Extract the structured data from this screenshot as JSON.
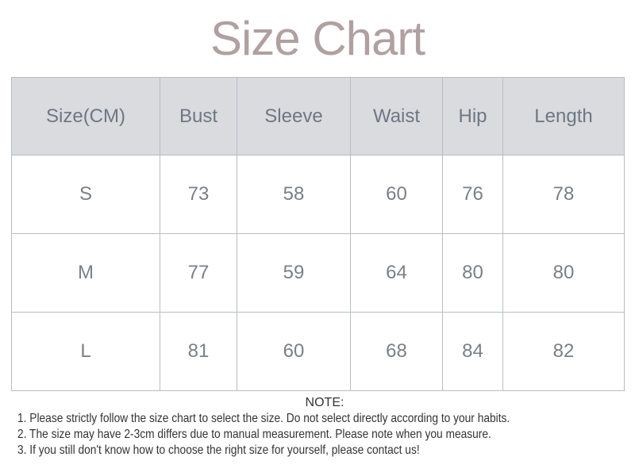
{
  "title": "Size Chart",
  "table": {
    "headers": [
      "Size(CM)",
      "Bust",
      "Sleeve",
      "Waist",
      "Hip",
      "Length"
    ],
    "rows": [
      [
        "S",
        "73",
        "58",
        "60",
        "76",
        "78"
      ],
      [
        "M",
        "77",
        "59",
        "64",
        "80",
        "80"
      ],
      [
        "L",
        "81",
        "60",
        "68",
        "84",
        "82"
      ]
    ]
  },
  "notes": {
    "heading": "NOTE:",
    "lines": [
      "1. Please strictly follow the size chart  to select the size. Do not select directly according to your habits.",
      "2. The size may have 2-3cm differs due to manual measurement. Please note when you measure.",
      "3. If you still don't know how to choose the right size for yourself, please contact us!"
    ]
  },
  "colors": {
    "title": "#b1a0a1",
    "header_bg": "#dadbdf",
    "text": "#6f7780"
  }
}
